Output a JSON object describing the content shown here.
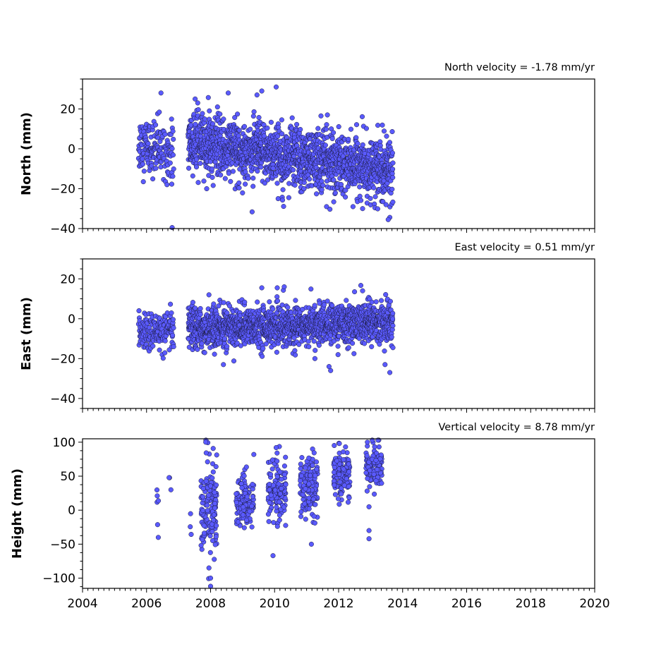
{
  "colors": {
    "marker_fill": "#5a5aff",
    "marker_edge": "#1a1a3a",
    "axis": "#000000"
  },
  "chart_data": [
    {
      "type": "scatter",
      "panel": "north",
      "title": "North velocity = -1.78 mm/yr",
      "ylabel": "North (mm)",
      "xlim": [
        2004,
        2020
      ],
      "ylim": [
        -40,
        35
      ],
      "yticks": [
        20,
        0,
        -20,
        -40
      ],
      "ytick_labels": [
        "20",
        "0",
        "−20",
        "−40"
      ],
      "series": [
        {
          "x": [],
          "y": []
        }
      ],
      "segments": [
        {
          "x0": 2005.75,
          "x1": 2006.85,
          "step": 0.006,
          "mean0": 2.5,
          "slope": -4,
          "sd": 7
        },
        {
          "x0": 2007.3,
          "x1": 2013.7,
          "step": 0.0035,
          "mean0": 3,
          "slope": -2.2,
          "sd": 7.5
        }
      ],
      "outliers": [
        [
          2006.45,
          28
        ],
        [
          2009.45,
          27
        ],
        [
          2010.05,
          31
        ],
        [
          2008.55,
          28
        ],
        [
          2006.8,
          -39.5
        ],
        [
          2013.55,
          -35.5
        ],
        [
          2012.45,
          -29
        ],
        [
          2011.65,
          17
        ],
        [
          2011.45,
          16.5
        ],
        [
          2007.6,
          23
        ],
        [
          2009.6,
          29
        ],
        [
          2010.55,
          15.5
        ],
        [
          2012.75,
          -30
        ]
      ]
    },
    {
      "type": "scatter",
      "panel": "east",
      "title": "East velocity = 0.51 mm/yr",
      "ylabel": "East (mm)",
      "xlim": [
        2004,
        2020
      ],
      "ylim": [
        -45,
        30
      ],
      "yticks": [
        20,
        0,
        -20,
        -40
      ],
      "ytick_labels": [
        "20",
        "0",
        "−20",
        "−40"
      ],
      "series": [
        {
          "x": [],
          "y": []
        }
      ],
      "segments": [
        {
          "x0": 2005.75,
          "x1": 2006.85,
          "step": 0.006,
          "mean0": -7,
          "slope": 0,
          "sd": 5
        },
        {
          "x0": 2007.3,
          "x1": 2013.7,
          "step": 0.0035,
          "mean0": -5,
          "slope": 0.51,
          "sd": 5
        }
      ],
      "outliers": [
        [
          2008.4,
          -23
        ],
        [
          2009.6,
          15.5
        ],
        [
          2010.3,
          16
        ],
        [
          2011.75,
          -26
        ],
        [
          2012.75,
          14
        ],
        [
          2013.6,
          -27
        ],
        [
          2013.45,
          -23
        ],
        [
          2007.95,
          12
        ],
        [
          2011.7,
          -24
        ]
      ]
    },
    {
      "type": "scatter",
      "panel": "vertical",
      "title": "Vertical velocity = 8.78 mm/yr",
      "ylabel": "Height (mm)",
      "xlim": [
        2004,
        2020
      ],
      "ylim": [
        -115,
        105
      ],
      "yticks": [
        100,
        50,
        0,
        -50,
        -100
      ],
      "ytick_labels": [
        "100",
        "50",
        "0",
        "−50",
        "−100"
      ],
      "xticks": [
        2004,
        2006,
        2008,
        2010,
        2012,
        2014,
        2016,
        2018,
        2020
      ],
      "xtick_labels": [
        "2004",
        "2006",
        "2008",
        "2010",
        "2012",
        "2014",
        "2016",
        "2018",
        "2020"
      ],
      "series": [
        {
          "x": [],
          "y": []
        }
      ],
      "clusters": [
        {
          "x0": 2006.3,
          "x1": 2006.38,
          "n": 6,
          "mean": 0,
          "sd": 20
        },
        {
          "x0": 2006.7,
          "x1": 2006.78,
          "n": 3,
          "mean": 40,
          "sd": 18
        },
        {
          "x0": 2007.35,
          "x1": 2007.42,
          "n": 3,
          "mean": 15,
          "sd": 30
        },
        {
          "x0": 2007.7,
          "x1": 2008.2,
          "n": 140,
          "mean": 5,
          "sd": 38
        },
        {
          "x0": 2008.8,
          "x1": 2009.35,
          "n": 140,
          "mean": 10,
          "sd": 22
        },
        {
          "x0": 2009.8,
          "x1": 2010.35,
          "n": 130,
          "mean": 28,
          "sd": 22
        },
        {
          "x0": 2010.8,
          "x1": 2011.35,
          "n": 140,
          "mean": 33,
          "sd": 22
        },
        {
          "x0": 2011.85,
          "x1": 2012.35,
          "n": 140,
          "mean": 55,
          "sd": 17
        },
        {
          "x0": 2012.85,
          "x1": 2013.35,
          "n": 120,
          "mean": 65,
          "sd": 15
        }
      ],
      "outliers": [
        [
          2007.85,
          100
        ],
        [
          2008.0,
          -112
        ],
        [
          2008.0,
          -100
        ],
        [
          2007.95,
          -85
        ],
        [
          2009.35,
          82
        ],
        [
          2010.05,
          92
        ],
        [
          2012.9,
          100
        ],
        [
          2012.95,
          -42
        ],
        [
          2012.95,
          -30
        ],
        [
          2012.95,
          5
        ],
        [
          2009.95,
          -67
        ],
        [
          2011.15,
          -50
        ]
      ]
    }
  ]
}
